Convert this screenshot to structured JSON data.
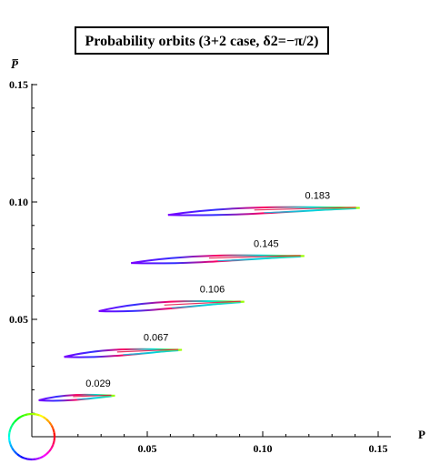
{
  "chart_data": {
    "type": "scatter",
    "title": "Probability orbits (3+2 case, δ2=−π/2)",
    "xlabel": "P",
    "ylabel": "P̅",
    "xlim": [
      0,
      0.15
    ],
    "ylim": [
      0,
      0.15
    ],
    "x_ticks": [
      "0.05",
      "0.10",
      "0.15"
    ],
    "y_ticks": [
      "0.05",
      "0.10",
      "0.15"
    ],
    "grid": false,
    "legend": "none",
    "color_wheel_legend": true,
    "series": [
      {
        "label": "0.029",
        "center": [
          0.0195,
          0.0165
        ],
        "x_range": [
          0.003,
          0.036
        ],
        "y_range": [
          0.0155,
          0.0175
        ]
      },
      {
        "label": "0.067",
        "center": [
          0.0385,
          0.0355
        ],
        "x_range": [
          0.014,
          0.065
        ],
        "y_range": [
          0.034,
          0.037
        ]
      },
      {
        "label": "0.106",
        "center": [
          0.0605,
          0.0555
        ],
        "x_range": [
          0.029,
          0.092
        ],
        "y_range": [
          0.0535,
          0.0575
        ]
      },
      {
        "label": "0.145",
        "center": [
          0.0805,
          0.0755
        ],
        "x_range": [
          0.043,
          0.118
        ],
        "y_range": [
          0.074,
          0.077
        ]
      },
      {
        "label": "0.183",
        "center": [
          0.1005,
          0.096
        ],
        "x_range": [
          0.059,
          0.142
        ],
        "y_range": [
          0.0945,
          0.0975
        ]
      }
    ]
  }
}
